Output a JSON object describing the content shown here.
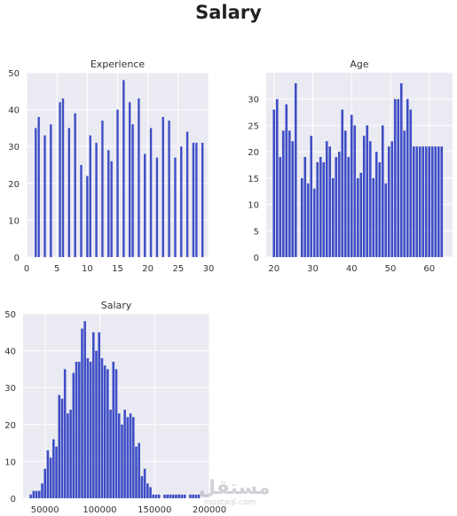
{
  "figure": {
    "title": "Salary",
    "watermark": {
      "arabic": "مستقل",
      "latin": "mostaql.com"
    },
    "colors": {
      "bar": "#3f4ec5",
      "plot_bg": "#eaeaf2",
      "grid": "#ffffff",
      "text": "#333333"
    }
  },
  "chart_data": [
    {
      "type": "bar",
      "title": "Experience",
      "xlabel": "",
      "ylabel": "",
      "xlim": [
        0,
        30
      ],
      "ylim": [
        0,
        50
      ],
      "xticks": [
        0,
        5,
        10,
        15,
        20,
        25,
        30
      ],
      "yticks": [
        0,
        10,
        20,
        30,
        40,
        50
      ],
      "grid": true,
      "x": [
        1.5,
        2,
        3,
        4,
        5.5,
        6,
        7,
        8,
        9,
        10,
        10.5,
        11.5,
        12.5,
        13.5,
        14,
        15,
        16,
        17,
        17.5,
        18.5,
        19.5,
        20.5,
        21.5,
        22.5,
        23.5,
        24.5,
        25.5,
        26.5,
        27.5,
        28,
        29
      ],
      "values": [
        35,
        38,
        33,
        36,
        42,
        43,
        35,
        39,
        25,
        22,
        33,
        31,
        37,
        29,
        26,
        40,
        48,
        42,
        36,
        43,
        28,
        35,
        27,
        38,
        37,
        27,
        30,
        34,
        31,
        31,
        31
      ],
      "bar_width": 0.35
    },
    {
      "type": "bar",
      "title": "Age",
      "xlabel": "",
      "ylabel": "",
      "xlim": [
        18,
        66
      ],
      "ylim": [
        0,
        35
      ],
      "xticks": [
        20,
        30,
        40,
        50,
        60
      ],
      "yticks": [
        0,
        5,
        10,
        15,
        20,
        25,
        30
      ],
      "grid": true,
      "x": [
        20,
        20.8,
        21.6,
        22.4,
        23.2,
        24,
        24.8,
        25.6,
        27.2,
        28,
        28.8,
        29.6,
        30.4,
        31.2,
        32,
        32.8,
        33.6,
        34.4,
        35.2,
        36,
        36.8,
        37.6,
        38.4,
        39.2,
        40,
        40.8,
        41.6,
        42.4,
        43.2,
        44,
        44.8,
        45.6,
        46.4,
        47.2,
        48,
        48.8,
        49.6,
        50.4,
        51.2,
        52,
        52.8,
        53.6,
        54.4,
        55.2,
        56,
        56.8,
        57.6,
        58.4,
        59.2,
        60,
        60.8,
        61.6,
        62.4,
        63.2
      ],
      "values": [
        28,
        30,
        19,
        24,
        29,
        24,
        22,
        33,
        15,
        19,
        14,
        23,
        13,
        18,
        19,
        18,
        22,
        21,
        15,
        19,
        20,
        28,
        24,
        19,
        27,
        25,
        15,
        16,
        23,
        25,
        22,
        15,
        20,
        18,
        25,
        14,
        21,
        22,
        30,
        30,
        33,
        24,
        30,
        28,
        21,
        21,
        21,
        21,
        21,
        21,
        21,
        21,
        21,
        21
      ],
      "bar_width": 0.6
    },
    {
      "type": "bar",
      "title": "Salary",
      "xlabel": "",
      "ylabel": "",
      "xlim": [
        30000,
        200000
      ],
      "ylim": [
        0,
        50
      ],
      "xticks": [
        50000,
        100000,
        150000,
        200000
      ],
      "yticks": [
        0,
        10,
        20,
        30,
        40,
        50
      ],
      "grid": true,
      "x": [
        37000,
        39600,
        42200,
        44800,
        47400,
        50000,
        52600,
        55200,
        57800,
        60400,
        63000,
        65600,
        68200,
        70800,
        73400,
        76000,
        78600,
        81200,
        83800,
        86400,
        89000,
        91600,
        94200,
        96800,
        99400,
        102000,
        104600,
        107200,
        109800,
        112400,
        115000,
        117600,
        120200,
        122800,
        125400,
        128000,
        130600,
        133200,
        135800,
        138400,
        141000,
        143600,
        146200,
        148800,
        151400,
        154000,
        156600,
        159200,
        161800,
        164400,
        167000,
        169600,
        172200,
        174800,
        177400,
        182600,
        185200,
        187800,
        190400
      ],
      "values": [
        1,
        2,
        2,
        2,
        4,
        8,
        13,
        11,
        16,
        14,
        28,
        27,
        35,
        23,
        24,
        34,
        37,
        37,
        46,
        48,
        38,
        37,
        45,
        40,
        45,
        38,
        36,
        35,
        24,
        37,
        35,
        23,
        20,
        24,
        22,
        23,
        22,
        14,
        15,
        6,
        8,
        4,
        3,
        1,
        1,
        1,
        0,
        1,
        1,
        1,
        1,
        1,
        1,
        1,
        1,
        1,
        1,
        1,
        1
      ],
      "bar_width": 2100
    }
  ]
}
